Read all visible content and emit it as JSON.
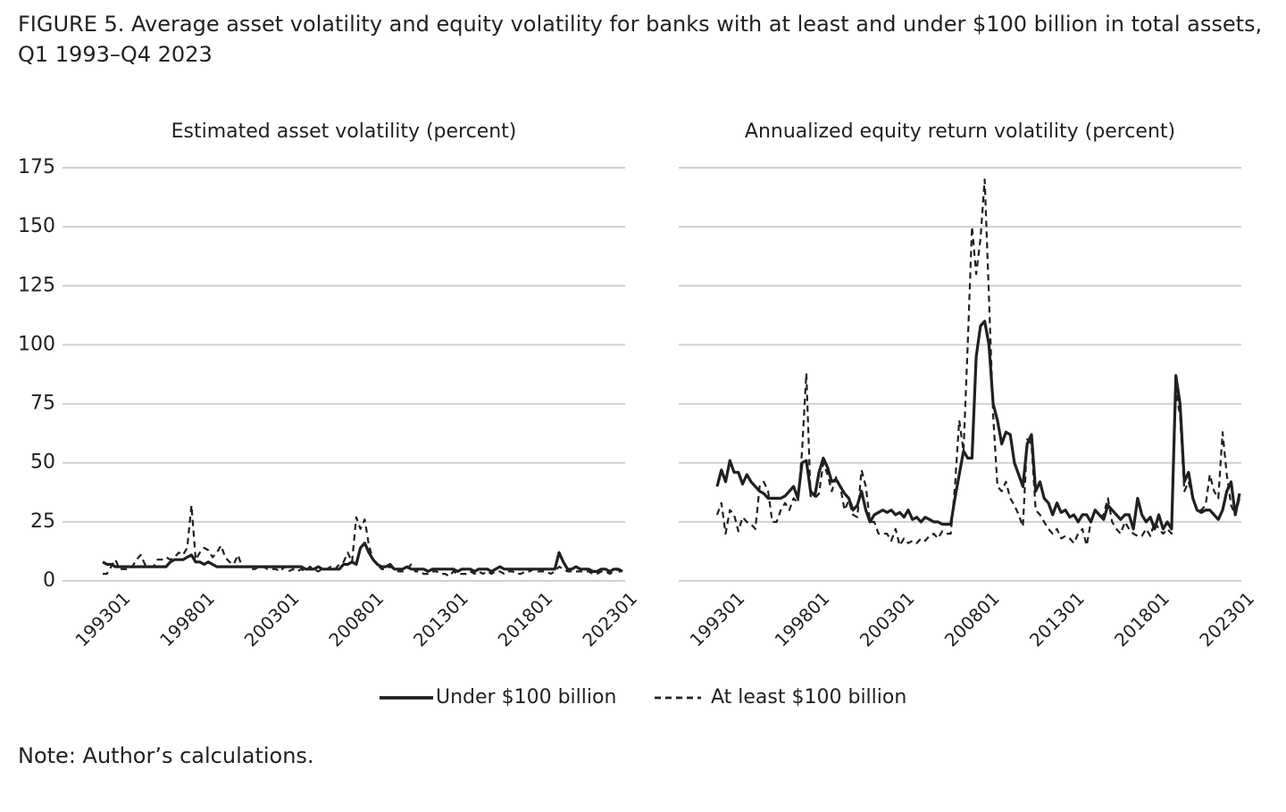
{
  "figure": {
    "title": [
      "FIGURE 5. Average asset volatility and equity volatility for banks with at least and under $100 billion in total assets,",
      "Q1 1993–Q4 2023"
    ],
    "note": "Note: Author’s calculations."
  },
  "chart_data": [
    {
      "type": "line",
      "title": "Estimated asset volatility (percent)",
      "ylim": [
        0,
        175
      ],
      "yticks": [
        0,
        25,
        50,
        75,
        100,
        125,
        150,
        175
      ],
      "ytick_labels": true,
      "grid": true,
      "categories": [
        "199301",
        null,
        null,
        null,
        null,
        null,
        null,
        null,
        null,
        null,
        null,
        null,
        null,
        null,
        null,
        null,
        null,
        null,
        null,
        null,
        "199801",
        null,
        null,
        null,
        null,
        null,
        null,
        null,
        null,
        null,
        null,
        null,
        null,
        null,
        null,
        null,
        null,
        null,
        null,
        null,
        "200301",
        null,
        null,
        null,
        null,
        null,
        null,
        null,
        null,
        null,
        null,
        null,
        null,
        null,
        null,
        null,
        null,
        null,
        null,
        null,
        "200801",
        null,
        null,
        null,
        null,
        null,
        null,
        null,
        null,
        null,
        null,
        null,
        null,
        null,
        null,
        null,
        null,
        null,
        null,
        null,
        "201301",
        null,
        null,
        null,
        null,
        null,
        null,
        null,
        null,
        null,
        null,
        null,
        null,
        null,
        null,
        null,
        null,
        null,
        null,
        null,
        "201801",
        null,
        null,
        null,
        null,
        null,
        null,
        null,
        null,
        null,
        null,
        null,
        null,
        null,
        null,
        null,
        null,
        null,
        null,
        null,
        "202301",
        null,
        null,
        null
      ],
      "series": [
        {
          "name": "Under $100 billion",
          "color": "#231f20",
          "style": "solid",
          "values": [
            8,
            7,
            7,
            6,
            6,
            6,
            6,
            6,
            6,
            6,
            6,
            6,
            6,
            6,
            6,
            6,
            8,
            9,
            9,
            9,
            10,
            11,
            8,
            8,
            7,
            8,
            7,
            6,
            6,
            6,
            6,
            6,
            6,
            6,
            6,
            6,
            6,
            6,
            6,
            6,
            6,
            6,
            6,
            6,
            6,
            6,
            6,
            6,
            5,
            5,
            5,
            6,
            5,
            5,
            5,
            5,
            5,
            7,
            7,
            8,
            7,
            14,
            16,
            12,
            9,
            7,
            6,
            6,
            7,
            5,
            5,
            5,
            6,
            5,
            5,
            5,
            5,
            4,
            5,
            5,
            5,
            5,
            5,
            5,
            4,
            5,
            5,
            5,
            4,
            5,
            5,
            5,
            4,
            5,
            6,
            5,
            5,
            5,
            5,
            5,
            5,
            5,
            5,
            5,
            5,
            5,
            5,
            5,
            12,
            8,
            5,
            5,
            6,
            5,
            5,
            5,
            4,
            4,
            5,
            5,
            4,
            5,
            5,
            4
          ]
        },
        {
          "name": "At least $100 billion",
          "color": "#231f20",
          "style": "dashed",
          "values": [
            3,
            3,
            6,
            9,
            5,
            5,
            5,
            6,
            9,
            11,
            7,
            6,
            6,
            9,
            9,
            10,
            9,
            10,
            12,
            11,
            14,
            32,
            9,
            12,
            14,
            13,
            10,
            12,
            15,
            10,
            8,
            7,
            11,
            6,
            6,
            5,
            5,
            6,
            6,
            5,
            5,
            5,
            4,
            6,
            4,
            5,
            4,
            5,
            4,
            6,
            5,
            4,
            5,
            5,
            6,
            5,
            7,
            8,
            12,
            8,
            27,
            22,
            26,
            15,
            9,
            7,
            5,
            5,
            6,
            5,
            4,
            4,
            5,
            7,
            4,
            4,
            3,
            3,
            4,
            4,
            3,
            3,
            2,
            4,
            3,
            3,
            3,
            4,
            3,
            4,
            3,
            4,
            3,
            4,
            4,
            3,
            4,
            4,
            3,
            3,
            4,
            4,
            5,
            4,
            4,
            4,
            3,
            4,
            6,
            5,
            4,
            4,
            4,
            4,
            4,
            4,
            3,
            3,
            4,
            4,
            3,
            4,
            5,
            2
          ]
        }
      ]
    },
    {
      "type": "line",
      "title": "Annualized equity return volatility (percent)",
      "ylim": [
        0,
        175
      ],
      "yticks": [
        0,
        25,
        50,
        75,
        100,
        125,
        150,
        175
      ],
      "ytick_labels": false,
      "grid": true,
      "categories": [
        "199301",
        null,
        null,
        null,
        null,
        null,
        null,
        null,
        null,
        null,
        null,
        null,
        null,
        null,
        null,
        null,
        null,
        null,
        null,
        null,
        "199801",
        null,
        null,
        null,
        null,
        null,
        null,
        null,
        null,
        null,
        null,
        null,
        null,
        null,
        null,
        null,
        null,
        null,
        null,
        null,
        "200301",
        null,
        null,
        null,
        null,
        null,
        null,
        null,
        null,
        null,
        null,
        null,
        null,
        null,
        null,
        null,
        null,
        null,
        null,
        null,
        "200801",
        null,
        null,
        null,
        null,
        null,
        null,
        null,
        null,
        null,
        null,
        null,
        null,
        null,
        null,
        null,
        null,
        null,
        null,
        null,
        "201301",
        null,
        null,
        null,
        null,
        null,
        null,
        null,
        null,
        null,
        null,
        null,
        null,
        null,
        null,
        null,
        null,
        null,
        null,
        null,
        "201801",
        null,
        null,
        null,
        null,
        null,
        null,
        null,
        null,
        null,
        null,
        null,
        null,
        null,
        null,
        null,
        null,
        null,
        null,
        null,
        "202301",
        null,
        null,
        null
      ],
      "series": [
        {
          "color": "#231f20",
          "style": "solid",
          "values": [
            40,
            47,
            42,
            51,
            46,
            46,
            41,
            45,
            42,
            40,
            38,
            37,
            35,
            35,
            35,
            35,
            36,
            38,
            40,
            35,
            50,
            51,
            38,
            36,
            46,
            52,
            48,
            42,
            43,
            40,
            37,
            35,
            30,
            32,
            38,
            30,
            25,
            28,
            29,
            30,
            29,
            30,
            28,
            29,
            27,
            30,
            26,
            27,
            25,
            27,
            26,
            25,
            25,
            24,
            24,
            24,
            35,
            45,
            55,
            52,
            52,
            95,
            108,
            110,
            100,
            75,
            68,
            58,
            63,
            62,
            50,
            45,
            40,
            58,
            62,
            38,
            42,
            35,
            33,
            28,
            33,
            29,
            30,
            27,
            28,
            25,
            28,
            28,
            25,
            30,
            28,
            26,
            32,
            30,
            28,
            26,
            28,
            28,
            22,
            35,
            28,
            25,
            27,
            22,
            28,
            22,
            25,
            22,
            87,
            75,
            42,
            46,
            35,
            30,
            29,
            30,
            30,
            28,
            26,
            30,
            38,
            42,
            28,
            37
          ]
        },
        {
          "color": "#231f20",
          "style": "dashed",
          "values": [
            28,
            33,
            20,
            30,
            28,
            21,
            27,
            25,
            24,
            22,
            40,
            42,
            38,
            25,
            25,
            30,
            33,
            30,
            35,
            33,
            55,
            88,
            36,
            35,
            37,
            50,
            45,
            38,
            44,
            40,
            30,
            34,
            28,
            27,
            47,
            40,
            25,
            25,
            20,
            20,
            20,
            17,
            22,
            15,
            18,
            16,
            17,
            16,
            18,
            17,
            19,
            20,
            18,
            21,
            20,
            20,
            40,
            68,
            55,
            100,
            150,
            130,
            145,
            170,
            120,
            70,
            40,
            38,
            42,
            35,
            32,
            28,
            23,
            60,
            58,
            30,
            28,
            25,
            22,
            20,
            22,
            18,
            19,
            18,
            16,
            20,
            22,
            15,
            25,
            30,
            27,
            28,
            35,
            25,
            22,
            20,
            25,
            22,
            20,
            19,
            19,
            22,
            19,
            25,
            22,
            20,
            22,
            20,
            80,
            70,
            38,
            42,
            35,
            30,
            30,
            32,
            45,
            38,
            35,
            63,
            45,
            32,
            28,
            35
          ]
        }
      ]
    }
  ]
}
